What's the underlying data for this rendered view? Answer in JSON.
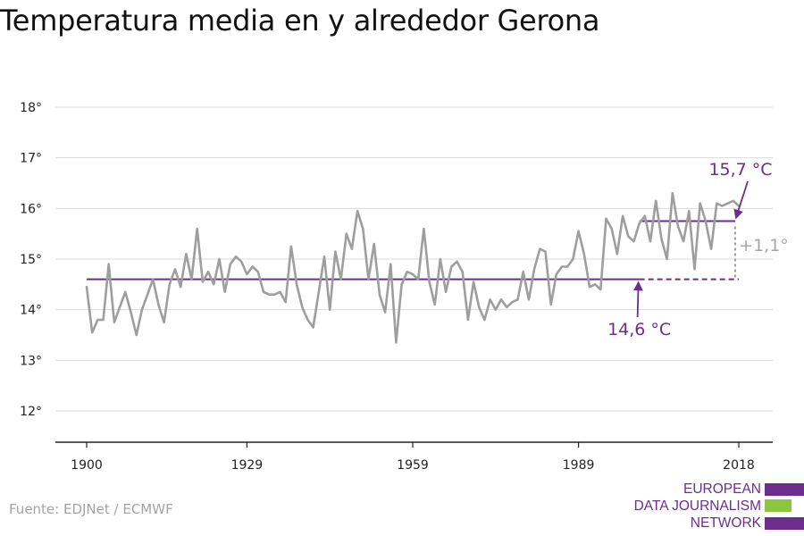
{
  "title": "Temperatura media en y alrededor Gerona",
  "source": "Fuente: EDJNet / ECMWF",
  "logo": {
    "lines": [
      "EUROPEAN",
      "DATA JOURNALISM",
      "NETWORK"
    ]
  },
  "colors": {
    "line": "#9e9e9e",
    "accent": "#6d2d8c",
    "grid": "#d9d9d9",
    "axis": "#222222",
    "logo_green": "#8cc63f"
  },
  "chart_data": {
    "type": "line",
    "title": "Temperatura media en y alrededor Gerona",
    "xlabel": "",
    "ylabel": "",
    "xlim": [
      1900,
      2018
    ],
    "ylim": [
      11.5,
      18.2
    ],
    "x_ticks": [
      1900,
      1929,
      1959,
      1989,
      2018
    ],
    "y_ticks": [
      12,
      13,
      14,
      15,
      16,
      17,
      18
    ],
    "y_tick_labels": [
      "12°",
      "13°",
      "14°",
      "15°",
      "16°",
      "17°",
      "18°"
    ],
    "grid": true,
    "series": [
      {
        "x_start": 1900,
        "values": [
          14.45,
          13.55,
          13.8,
          13.8,
          14.9,
          13.75,
          14.05,
          14.35,
          13.95,
          13.5,
          14.0,
          14.3,
          14.6,
          14.1,
          13.75,
          14.5,
          14.8,
          14.45,
          15.1,
          14.6,
          15.6,
          14.55,
          14.75,
          14.5,
          15.0,
          14.35,
          14.9,
          15.05,
          14.95,
          14.7,
          14.85,
          14.75,
          14.35,
          14.3,
          14.3,
          14.35,
          14.15,
          15.25,
          14.5,
          14.05,
          13.8,
          13.65,
          14.35,
          15.05,
          14.0,
          15.15,
          14.6,
          15.5,
          15.2,
          15.95,
          15.6,
          14.6,
          15.3,
          14.3,
          13.95,
          14.9,
          13.35,
          14.5,
          14.75,
          14.7,
          14.6,
          15.6,
          14.55,
          14.1,
          15.0,
          14.35,
          14.85,
          14.95,
          14.75,
          13.8,
          14.55,
          14.05,
          13.8,
          14.2,
          14.0,
          14.2,
          14.05,
          14.15,
          14.2,
          14.75,
          14.2,
          14.8,
          15.2,
          15.15,
          14.1,
          14.7,
          14.85,
          14.85,
          15.0,
          15.55,
          15.1,
          14.45,
          14.5,
          14.4,
          15.8,
          15.6,
          15.1,
          15.85,
          15.45,
          15.35,
          15.7,
          15.85,
          15.35,
          16.15,
          15.4,
          15.0,
          16.3,
          15.65,
          15.35,
          15.95,
          14.8,
          16.1,
          15.75,
          15.2,
          16.1,
          16.05,
          16.1,
          16.15,
          16.05
        ]
      }
    ],
    "annotations": {
      "baseline": {
        "value": 14.6,
        "x_from": 1900,
        "x_solid_to": 2000,
        "x_to": 2018,
        "label": "14,6 °C"
      },
      "recent": {
        "value": 15.75,
        "x_from": 2000,
        "x_to": 2018,
        "label": "15,7 °C"
      },
      "difference": {
        "label": "+1,1°"
      }
    }
  }
}
